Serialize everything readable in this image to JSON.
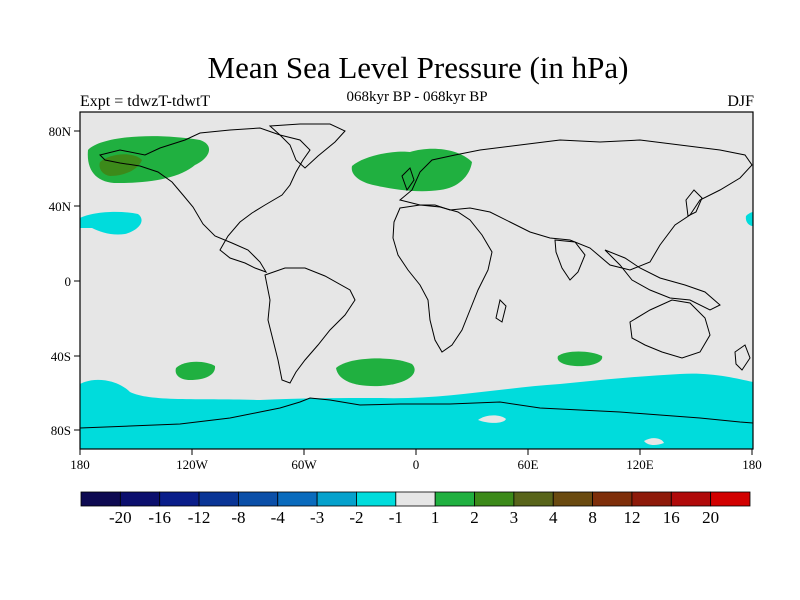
{
  "title": "Mean Sea Level Pressure (in hPa)",
  "experiment_label": "Expt = tdwzT-tdwtT",
  "period_label": "068kyr BP - 068kyr BP",
  "season_label": "DJF",
  "x_ticks": [
    "180",
    "120W",
    "60W",
    "0",
    "60E",
    "120E",
    "180"
  ],
  "y_ticks": [
    "80N",
    "40N",
    "0",
    "40S",
    "80S"
  ],
  "colorbar": {
    "labels": [
      "-20",
      "-16",
      "-12",
      "-8",
      "-4",
      "-3",
      "-2",
      "-1",
      "1",
      "2",
      "3",
      "4",
      "8",
      "12",
      "16",
      "20"
    ],
    "colors": [
      "#0e0a52",
      "#0c0f6e",
      "#0a1e8a",
      "#0a3596",
      "#0b4fa8",
      "#0a6bbd",
      "#05a1cc",
      "#00dcdc",
      "#e6e6e6",
      "#20b040",
      "#3c8a1a",
      "#58641a",
      "#6a4a10",
      "#7e2e0a",
      "#8e1a0a",
      "#b00a0a",
      "#d20000"
    ]
  },
  "map": {
    "background": "#e6e6e6",
    "anomaly_regions": [
      {
        "name": "north-pacific-positive",
        "color": "#20b040"
      },
      {
        "name": "north-pacific-core",
        "color": "#3c8a1a"
      },
      {
        "name": "north-atlantic-positive",
        "color": "#20b040"
      },
      {
        "name": "subtropical-pacific-negative",
        "color": "#00dcdc"
      },
      {
        "name": "southern-ocean-negative",
        "color": "#00dcdc"
      },
      {
        "name": "south-pacific-positive",
        "color": "#20b040"
      },
      {
        "name": "south-atlantic-positive",
        "color": "#20b040"
      },
      {
        "name": "south-indian-positive",
        "color": "#20b040"
      }
    ]
  }
}
